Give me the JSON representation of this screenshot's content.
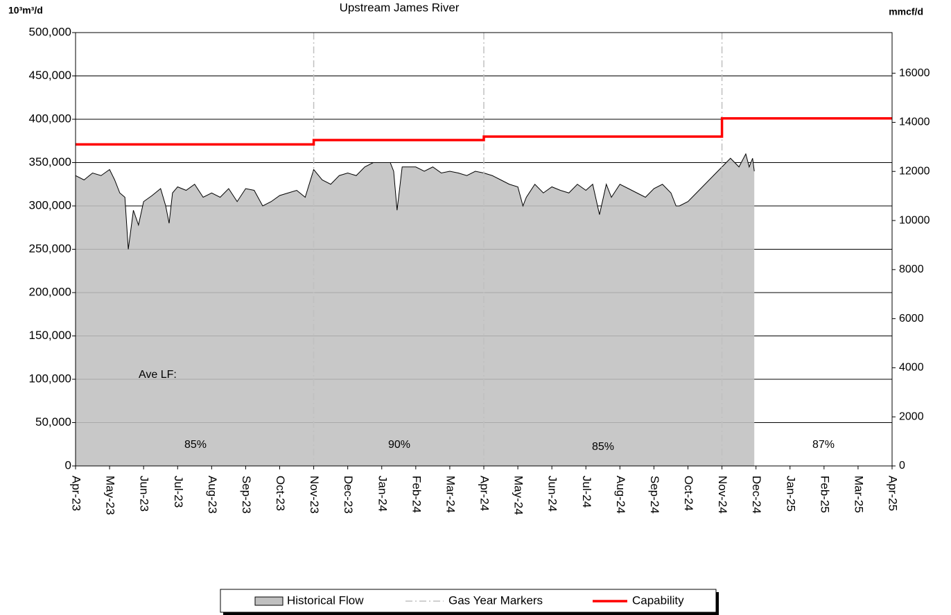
{
  "chart_data": {
    "type": "area",
    "title": "Upstream James River",
    "y_label": "10³m³/d",
    "y2_label": "mmcf/d",
    "xlim": [
      0,
      24
    ],
    "xticks": [
      {
        "value": 0,
        "label": "Apr-23"
      },
      {
        "value": 1,
        "label": "May-23"
      },
      {
        "value": 2,
        "label": "Jun-23"
      },
      {
        "value": 3,
        "label": "Jul-23"
      },
      {
        "value": 4,
        "label": "Aug-23"
      },
      {
        "value": 5,
        "label": "Sep-23"
      },
      {
        "value": 6,
        "label": "Oct-23"
      },
      {
        "value": 7,
        "label": "Nov-23"
      },
      {
        "value": 8,
        "label": "Dec-23"
      },
      {
        "value": 9,
        "label": "Jan-24"
      },
      {
        "value": 10,
        "label": "Feb-24"
      },
      {
        "value": 11,
        "label": "Mar-24"
      },
      {
        "value": 12,
        "label": "Apr-24"
      },
      {
        "value": 13,
        "label": "May-24"
      },
      {
        "value": 14,
        "label": "Jun-24"
      },
      {
        "value": 15,
        "label": "Jul-24"
      },
      {
        "value": 16,
        "label": "Aug-24"
      },
      {
        "value": 17,
        "label": "Sep-24"
      },
      {
        "value": 18,
        "label": "Oct-24"
      },
      {
        "value": 19,
        "label": "Nov-24"
      },
      {
        "value": 20,
        "label": "Dec-24"
      },
      {
        "value": 21,
        "label": "Jan-25"
      },
      {
        "value": 22,
        "label": "Feb-25"
      },
      {
        "value": 23,
        "label": "Mar-25"
      },
      {
        "value": 24,
        "label": "Apr-25"
      }
    ],
    "ylim": [
      0,
      500000
    ],
    "yticks": [
      0,
      {
        "value": 50000,
        "label": "50,000"
      },
      {
        "value": 100000,
        "label": "100,000"
      },
      {
        "value": 150000,
        "label": "150,000"
      },
      {
        "value": 200000,
        "label": "200,000"
      },
      {
        "value": 250000,
        "label": "250,000"
      },
      {
        "value": 300000,
        "label": "300,000"
      },
      {
        "value": 350000,
        "label": "350,000"
      },
      {
        "value": 400000,
        "label": "400,000"
      },
      {
        "value": 450000,
        "label": "450,000"
      },
      {
        "value": 500000,
        "label": "500,000"
      }
    ],
    "y2lim": [
      0,
      17657
    ],
    "y2ticks": [
      0,
      2000,
      4000,
      6000,
      8000,
      10000,
      12000,
      14000,
      16000
    ],
    "grid": true,
    "series": [
      {
        "name": "Historical Flow",
        "color": "#c0c0c0",
        "x": [
          0,
          0.25,
          0.5,
          0.75,
          1,
          1.15,
          1.3,
          1.45,
          1.55,
          1.7,
          1.85,
          2,
          2.25,
          2.5,
          2.65,
          2.75,
          2.85,
          3,
          3.25,
          3.5,
          3.75,
          4,
          4.25,
          4.5,
          4.75,
          5,
          5.25,
          5.5,
          5.75,
          6,
          6.25,
          6.5,
          6.75,
          7,
          7.25,
          7.5,
          7.75,
          8,
          8.25,
          8.5,
          8.75,
          9,
          9.25,
          9.35,
          9.45,
          9.6,
          9.75,
          10,
          10.25,
          10.5,
          10.75,
          11,
          11.25,
          11.5,
          11.75,
          12,
          12.25,
          12.5,
          12.75,
          13,
          13.15,
          13.25,
          13.5,
          13.75,
          14,
          14.25,
          14.5,
          14.75,
          15,
          15.2,
          15.4,
          15.6,
          15.75,
          16,
          16.25,
          16.5,
          16.75,
          17,
          17.25,
          17.5,
          17.65,
          17.75,
          18,
          18.25,
          18.5,
          18.75,
          19,
          19.25,
          19.5,
          19.7,
          19.8,
          19.9,
          19.95
        ],
        "values": [
          335000,
          330000,
          338000,
          335000,
          342000,
          330000,
          315000,
          310000,
          250000,
          295000,
          278000,
          305000,
          312000,
          320000,
          300000,
          280000,
          315000,
          322000,
          318000,
          325000,
          310000,
          315000,
          310000,
          320000,
          305000,
          320000,
          318000,
          300000,
          305000,
          312000,
          315000,
          318000,
          310000,
          342000,
          330000,
          325000,
          335000,
          338000,
          335000,
          345000,
          350000,
          350000,
          350000,
          340000,
          295000,
          345000,
          345000,
          345000,
          340000,
          345000,
          338000,
          340000,
          338000,
          335000,
          340000,
          338000,
          335000,
          330000,
          325000,
          322000,
          300000,
          310000,
          325000,
          315000,
          322000,
          318000,
          315000,
          325000,
          318000,
          325000,
          290000,
          325000,
          310000,
          325000,
          320000,
          315000,
          310000,
          320000,
          325000,
          315000,
          300000,
          300000,
          305000,
          315000,
          325000,
          335000,
          345000,
          355000,
          345000,
          360000,
          345000,
          355000,
          340000
        ]
      },
      {
        "name": "Gas Year Markers",
        "color": "#c0c0c0",
        "markers": [
          7,
          12,
          19
        ]
      },
      {
        "name": "Capability",
        "color": "#ff0000",
        "x": [
          0,
          7,
          7,
          12,
          12,
          19,
          19,
          24
        ],
        "values": [
          371000,
          371000,
          376000,
          376000,
          380000,
          380000,
          401000,
          401000
        ]
      }
    ],
    "annotations": [
      "Ave LF:",
      "85%",
      "90%",
      "85%",
      "87%"
    ]
  }
}
